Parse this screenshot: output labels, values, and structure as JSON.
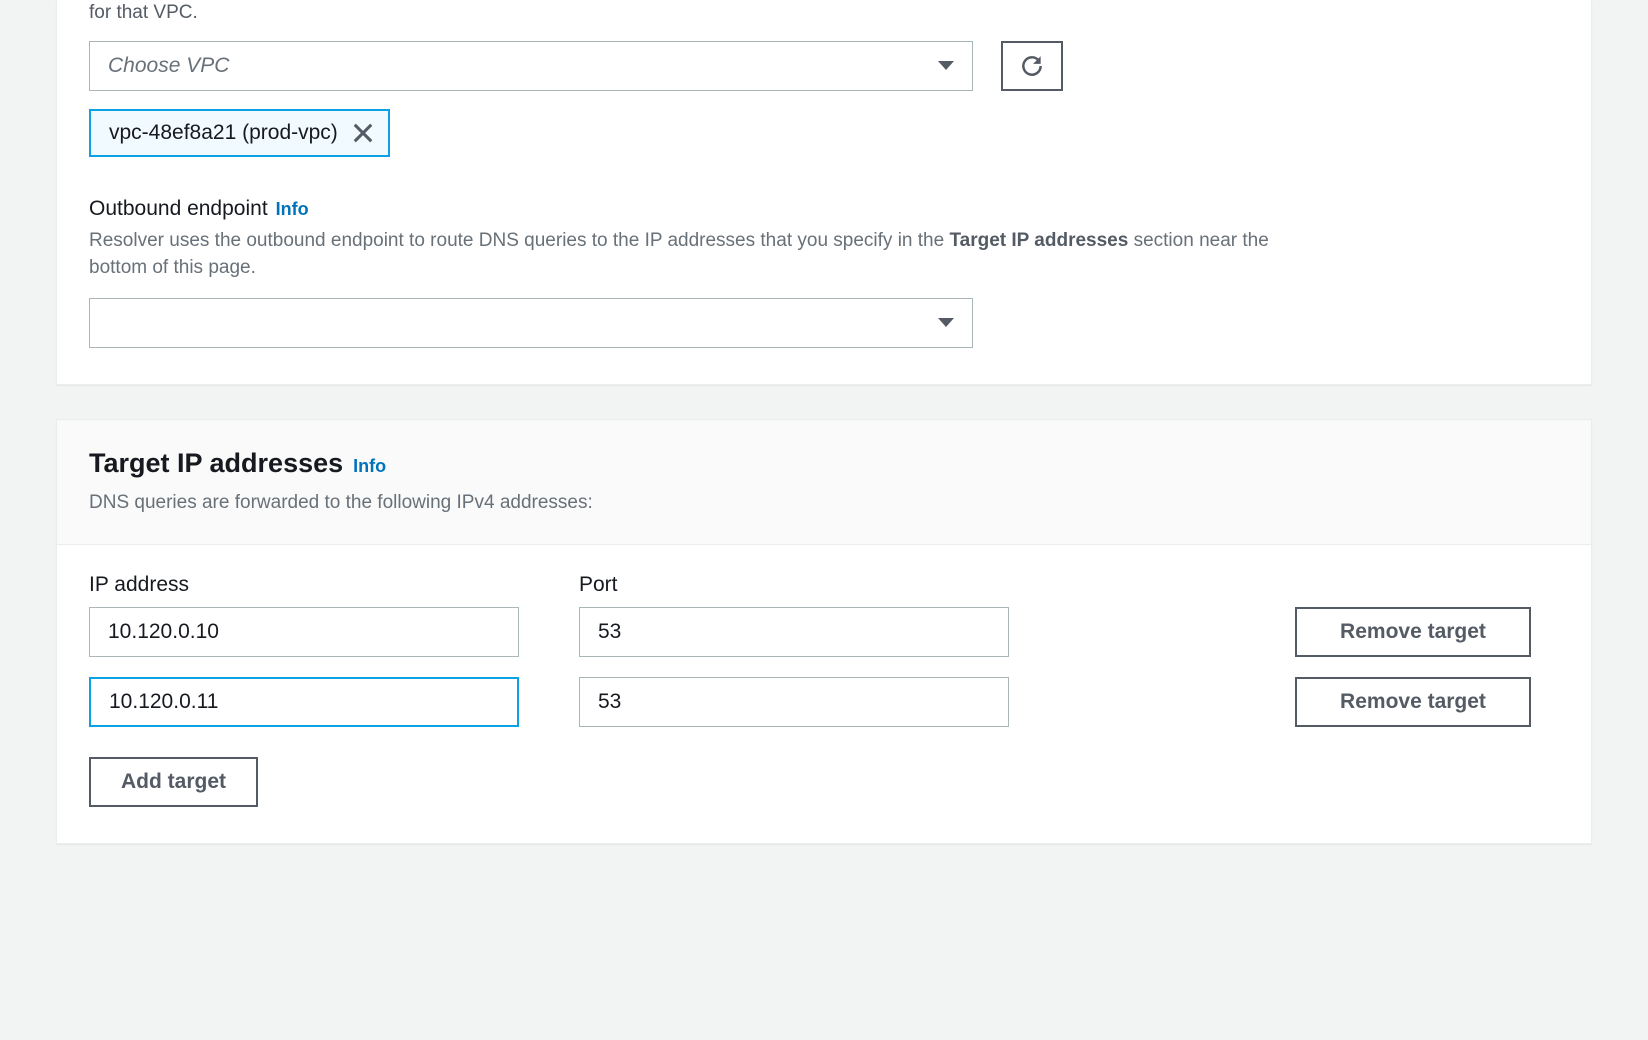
{
  "colors": {
    "page_bg": "#f2f3f3",
    "panel_bg": "#ffffff",
    "border": "#aab7b8",
    "text": "#16191f",
    "text_muted": "#687078",
    "text_dim": "#545b64",
    "link": "#0073bb",
    "focus": "#0da2e4",
    "chip_bg": "#f1faff",
    "header_bg": "#fafafa"
  },
  "vpc": {
    "truncated_desc": "for that VPC.",
    "select_placeholder": "Choose VPC",
    "selected_chip": "vpc-48ef8a21 (prod-vpc)"
  },
  "outbound": {
    "label": "Outbound endpoint",
    "info": "Info",
    "desc_pre": "Resolver uses the outbound endpoint to route DNS queries to the IP addresses that you specify in the ",
    "desc_bold": "Target IP addresses",
    "desc_post": " section near the bottom of this page."
  },
  "targets": {
    "title": "Target IP addresses",
    "info": "Info",
    "subtitle": "DNS queries are forwarded to the following IPv4 addresses:",
    "ip_header": "IP address",
    "port_header": "Port",
    "remove_label": "Remove target",
    "add_label": "Add target",
    "rows": [
      {
        "ip": "10.120.0.10",
        "port": "53",
        "focused": false
      },
      {
        "ip": "10.120.0.11",
        "port": "53",
        "focused": true
      }
    ]
  }
}
